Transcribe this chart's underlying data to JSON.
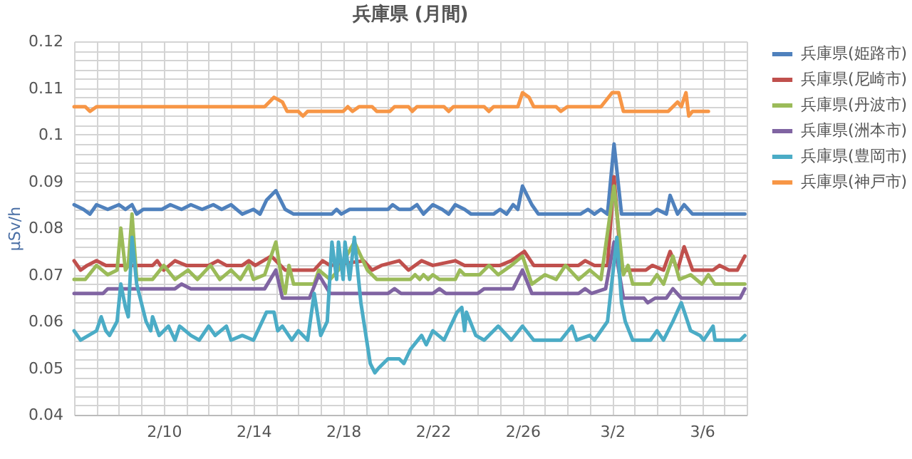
{
  "chart_data": {
    "type": "line",
    "title": "兵庫県 (月間)",
    "ylabel": "μSv/h",
    "legend": "right",
    "grid": true,
    "xlim": [
      "--02-06T00:00",
      "--03-08T00:00"
    ],
    "xticks": [
      {
        "value": "--02-06T00:00",
        "label": null
      },
      {
        "value": "--02-07T00:00",
        "label": null
      },
      {
        "value": "--02-08T00:00",
        "label": null
      },
      {
        "value": "--02-09T00:00",
        "label": null
      },
      {
        "value": "--02-10T00:00",
        "label": "2/10"
      },
      {
        "value": "--02-11T00:00",
        "label": null
      },
      {
        "value": "--02-12T00:00",
        "label": null
      },
      {
        "value": "--02-13T00:00",
        "label": null
      },
      {
        "value": "--02-14T00:00",
        "label": "2/14"
      },
      {
        "value": "--02-15T00:00",
        "label": null
      },
      {
        "value": "--02-16T00:00",
        "label": null
      },
      {
        "value": "--02-17T00:00",
        "label": null
      },
      {
        "value": "--02-18T00:00",
        "label": "2/18"
      },
      {
        "value": "--02-19T00:00",
        "label": null
      },
      {
        "value": "--02-20T00:00",
        "label": null
      },
      {
        "value": "--02-21T00:00",
        "label": null
      },
      {
        "value": "--02-22T00:00",
        "label": "2/22"
      },
      {
        "value": "--02-23T00:00",
        "label": null
      },
      {
        "value": "--02-24T00:00",
        "label": null
      },
      {
        "value": "--02-25T00:00",
        "label": null
      },
      {
        "value": "--02-26T00:00",
        "label": "2/26"
      },
      {
        "value": "--02-27T00:00",
        "label": null
      },
      {
        "value": "--02-28T00:00",
        "label": null
      },
      {
        "value": "--03-01T00:00",
        "label": null
      },
      {
        "value": "--03-02T00:00",
        "label": "3/2"
      },
      {
        "value": "--03-03T00:00",
        "label": null
      },
      {
        "value": "--03-04T00:00",
        "label": null
      },
      {
        "value": "--03-05T00:00",
        "label": null
      },
      {
        "value": "--03-06T00:00",
        "label": "3/6"
      },
      {
        "value": "--03-07T00:00",
        "label": null
      },
      {
        "value": "--03-08T00:00",
        "label": null
      }
    ],
    "ylim": [
      0.04,
      0.12
    ],
    "yticks": [
      0.04,
      {
        "value": 0.042,
        "label": null
      },
      {
        "value": 0.044,
        "label": null
      },
      {
        "value": 0.046,
        "label": null
      },
      {
        "value": 0.048,
        "label": null
      },
      0.05,
      {
        "value": 0.052,
        "label": null
      },
      {
        "value": 0.054,
        "label": null
      },
      {
        "value": 0.056,
        "label": null
      },
      {
        "value": 0.058,
        "label": null
      },
      0.06,
      {
        "value": 0.062,
        "label": null
      },
      {
        "value": 0.064,
        "label": null
      },
      {
        "value": 0.066,
        "label": null
      },
      {
        "value": 0.068,
        "label": null
      },
      0.07,
      {
        "value": 0.072,
        "label": null
      },
      {
        "value": 0.074,
        "label": null
      },
      {
        "value": 0.076,
        "label": null
      },
      {
        "value": 0.078,
        "label": null
      },
      0.08,
      {
        "value": 0.082,
        "label": null
      },
      {
        "value": 0.084,
        "label": null
      },
      {
        "value": 0.086,
        "label": null
      },
      {
        "value": 0.088,
        "label": null
      },
      0.09,
      {
        "value": 0.092,
        "label": null
      },
      {
        "value": 0.094,
        "label": null
      },
      {
        "value": 0.096,
        "label": null
      },
      {
        "value": 0.098,
        "label": null
      },
      0.1,
      {
        "value": 0.102,
        "label": null
      },
      {
        "value": 0.104,
        "label": null
      },
      {
        "value": 0.106,
        "label": null
      },
      {
        "value": 0.108,
        "label": null
      },
      0.11,
      {
        "value": 0.112,
        "label": null
      },
      {
        "value": 0.114,
        "label": null
      },
      {
        "value": 0.116,
        "label": null
      },
      {
        "value": 0.118,
        "label": null
      },
      0.12
    ],
    "series": [
      {
        "name": "兵庫県(姫路市)",
        "color": "#4f81bd",
        "x": [
          "--02-06T00:00",
          "--02-06T10:00",
          "--02-06T17:00",
          "--02-07T00:00",
          "--02-07T12:00",
          "--02-08T00:00",
          "--02-08T07:00",
          "--02-08T14:00",
          "--02-08T19:00",
          "--02-09T02:00",
          "--02-09T22:00",
          "--02-10T07:00",
          "--02-10T19:00",
          "--02-11T05:00",
          "--02-11T17:00",
          "--02-12T05:00",
          "--02-12T14:00",
          "--02-13T00:00",
          "--02-13T12:00",
          "--02-14T00:00",
          "--02-14T07:00",
          "--02-14T14:00",
          "--02-15T00:00",
          "--02-15T10:00",
          "--02-15T19:00",
          "--02-17T12:00",
          "--02-17T17:00",
          "--02-17T22:00",
          "--02-18T07:00",
          "--02-20T00:00",
          "--02-20T05:00",
          "--02-20T12:00",
          "--02-21T00:00",
          "--02-21T07:00",
          "--02-21T14:00",
          "--02-22T00:00",
          "--02-22T10:00",
          "--02-22T17:00",
          "--02-23T00:00",
          "--02-23T10:00",
          "--02-23T17:00",
          "--02-24T17:00",
          "--02-25T00:00",
          "--02-25T07:00",
          "--02-25T14:00",
          "--02-25T19:00",
          "--02-26T00:00",
          "--02-26T10:00",
          "--02-26T17:00",
          "--02-28T14:00",
          "--02-28T22:00",
          "--03-01T05:00",
          "--03-01T12:00",
          "--03-01T19:00",
          "--03-02T02:00",
          "--03-02T10:00",
          "--03-03T17:00",
          "--03-04T00:00",
          "--03-04T10:00",
          "--03-04T14:00",
          "--03-04T22:00",
          "--03-05T05:00",
          "--03-05T14:00",
          "--03-07T22:00"
        ],
        "values": [
          0.085,
          0.084,
          0.083,
          0.085,
          0.084,
          0.085,
          0.084,
          0.085,
          0.083,
          0.084,
          0.084,
          0.085,
          0.084,
          0.085,
          0.084,
          0.085,
          0.084,
          0.085,
          0.083,
          0.084,
          0.083,
          0.086,
          0.088,
          0.084,
          0.083,
          0.083,
          0.084,
          0.083,
          0.084,
          0.084,
          0.085,
          0.084,
          0.084,
          0.085,
          0.083,
          0.085,
          0.084,
          0.083,
          0.085,
          0.084,
          0.083,
          0.083,
          0.084,
          0.083,
          0.085,
          0.084,
          0.089,
          0.085,
          0.083,
          0.083,
          0.084,
          0.083,
          0.084,
          0.083,
          0.098,
          0.083,
          0.083,
          0.084,
          0.083,
          0.087,
          0.083,
          0.085,
          0.083,
          0.083
        ]
      },
      {
        "name": "兵庫県(尼崎市)",
        "color": "#c0504d",
        "x": [
          "--02-06T00:00",
          "--02-06T07:00",
          "--02-06T14:00",
          "--02-07T00:00",
          "--02-07T10:00",
          "--02-09T12:00",
          "--02-09T17:00",
          "--02-10T00:00",
          "--02-10T12:00",
          "--02-11T00:00",
          "--02-12T00:00",
          "--02-12T10:00",
          "--02-12T19:00",
          "--02-13T12:00",
          "--02-13T19:00",
          "--02-14T02:00",
          "--02-14T19:00",
          "--02-15T10:00",
          "--02-16T17:00",
          "--02-17T02:00",
          "--02-17T10:00",
          "--02-18T22:00",
          "--02-19T07:00",
          "--02-19T17:00",
          "--02-20T12:00",
          "--02-20T22:00",
          "--02-21T12:00",
          "--02-22T00:00",
          "--02-23T00:00",
          "--02-23T10:00",
          "--02-25T00:00",
          "--02-25T12:00",
          "--02-26T02:00",
          "--02-26T12:00",
          "--02-28T12:00",
          "--02-28T19:00",
          "--03-01T05:00",
          "--03-01T19:00",
          "--03-02T02:00",
          "--03-02T10:00",
          "--03-03T12:00",
          "--03-03T19:00",
          "--03-04T07:00",
          "--03-04T14:00",
          "--03-04T22:00",
          "--03-05T05:00",
          "--03-05T14:00",
          "--03-06T12:00",
          "--03-06T19:00",
          "--03-07T05:00",
          "--03-07T14:00",
          "--03-07T22:00"
        ],
        "values": [
          0.073,
          0.071,
          0.072,
          0.073,
          0.072,
          0.072,
          0.073,
          0.071,
          0.073,
          0.072,
          0.072,
          0.073,
          0.072,
          0.072,
          0.073,
          0.072,
          0.074,
          0.071,
          0.071,
          0.073,
          0.072,
          0.073,
          0.071,
          0.072,
          0.073,
          0.071,
          0.073,
          0.072,
          0.073,
          0.072,
          0.072,
          0.073,
          0.075,
          0.072,
          0.072,
          0.073,
          0.072,
          0.072,
          0.091,
          0.071,
          0.071,
          0.072,
          0.071,
          0.075,
          0.071,
          0.076,
          0.071,
          0.071,
          0.072,
          0.071,
          0.071,
          0.074
        ]
      },
      {
        "name": "兵庫県(丹波市)",
        "color": "#9bbb59",
        "x": [
          "--02-06T00:00",
          "--02-06T12:00",
          "--02-07T00:00",
          "--02-07T12:00",
          "--02-07T22:00",
          "--02-08T02:00",
          "--02-08T07:00",
          "--02-08T10:00",
          "--02-08T14:00",
          "--02-08T19:00",
          "--02-09T12:00",
          "--02-10T00:00",
          "--02-10T12:00",
          "--02-11T02:00",
          "--02-11T12:00",
          "--02-12T02:00",
          "--02-12T12:00",
          "--02-13T00:00",
          "--02-13T10:00",
          "--02-13T19:00",
          "--02-14T00:00",
          "--02-14T12:00",
          "--02-15T00:00",
          "--02-15T07:00",
          "--02-15T10:00",
          "--02-15T14:00",
          "--02-15T19:00",
          "--02-16T17:00",
          "--02-16T22:00",
          "--02-17T10:00",
          "--02-17T19:00",
          "--02-18T12:00",
          "--02-19T02:00",
          "--02-19T12:00",
          "--02-21T00:00",
          "--02-21T05:00",
          "--02-21T10:00",
          "--02-21T14:00",
          "--02-21T19:00",
          "--02-22T00:00",
          "--02-22T07:00",
          "--02-23T00:00",
          "--02-23T05:00",
          "--02-23T10:00",
          "--02-24T02:00",
          "--02-24T12:00",
          "--02-24T22:00",
          "--02-25T12:00",
          "--02-26T00:00",
          "--02-26T10:00",
          "--02-27T00:00",
          "--02-27T12:00",
          "--02-27T22:00",
          "--02-28T12:00",
          "--03-01T00:00",
          "--03-01T12:00",
          "--03-02T02:00",
          "--03-02T12:00",
          "--03-02T17:00",
          "--03-02T22:00",
          "--03-03T17:00",
          "--03-04T00:00",
          "--03-04T07:00",
          "--03-04T17:00",
          "--03-05T00:00",
          "--03-05T12:00",
          "--03-06T00:00",
          "--03-06T07:00",
          "--03-06T14:00",
          "--03-07T22:00"
        ],
        "values": [
          0.069,
          0.069,
          0.072,
          0.07,
          0.071,
          0.08,
          0.071,
          0.072,
          0.083,
          0.069,
          0.069,
          0.072,
          0.069,
          0.071,
          0.069,
          0.072,
          0.069,
          0.071,
          0.069,
          0.072,
          0.069,
          0.07,
          0.077,
          0.068,
          0.066,
          0.072,
          0.068,
          0.068,
          0.071,
          0.069,
          0.071,
          0.077,
          0.071,
          0.069,
          0.069,
          0.07,
          0.069,
          0.07,
          0.069,
          0.07,
          0.069,
          0.069,
          0.071,
          0.07,
          0.07,
          0.072,
          0.07,
          0.072,
          0.074,
          0.068,
          0.07,
          0.069,
          0.072,
          0.069,
          0.071,
          0.069,
          0.089,
          0.07,
          0.072,
          0.068,
          0.068,
          0.07,
          0.068,
          0.074,
          0.069,
          0.07,
          0.068,
          0.07,
          0.068,
          0.068
        ]
      },
      {
        "name": "兵庫県(洲本市)",
        "color": "#8064a2",
        "x": [
          "--02-06T00:00",
          "--02-07T07:00",
          "--02-07T12:00",
          "--02-10T12:00",
          "--02-10T19:00",
          "--02-11T05:00",
          "--02-14T12:00",
          "--02-15T00:00",
          "--02-15T07:00",
          "--02-16T12:00",
          "--02-16T22:00",
          "--02-17T10:00",
          "--02-20T00:00",
          "--02-20T07:00",
          "--02-20T14:00",
          "--02-22T00:00",
          "--02-22T07:00",
          "--02-22T14:00",
          "--02-24T00:00",
          "--02-24T07:00",
          "--02-25T14:00",
          "--02-26T00:00",
          "--02-26T10:00",
          "--02-28T12:00",
          "--02-28T19:00",
          "--03-01T02:00",
          "--03-01T17:00",
          "--03-02T02:00",
          "--03-02T12:00",
          "--03-03T10:00",
          "--03-03T14:00",
          "--03-03T22:00",
          "--03-04T10:00",
          "--03-04T17:00",
          "--03-05T02:00",
          "--03-07T17:00",
          "--03-07T22:00"
        ],
        "values": [
          0.066,
          0.066,
          0.067,
          0.067,
          0.068,
          0.067,
          0.067,
          0.071,
          0.065,
          0.065,
          0.07,
          0.066,
          0.066,
          0.067,
          0.066,
          0.066,
          0.067,
          0.066,
          0.066,
          0.067,
          0.067,
          0.071,
          0.066,
          0.066,
          0.067,
          0.066,
          0.067,
          0.077,
          0.065,
          0.065,
          0.064,
          0.065,
          0.065,
          0.067,
          0.065,
          0.065,
          0.067
        ]
      },
      {
        "name": "兵庫県(豊岡市)",
        "color": "#4bacc6",
        "x": [
          "--02-06T00:00",
          "--02-06T07:00",
          "--02-07T00:00",
          "--02-07T05:00",
          "--02-07T10:00",
          "--02-07T14:00",
          "--02-07T22:00",
          "--02-08T02:00",
          "--02-08T07:00",
          "--02-08T10:00",
          "--02-08T14:00",
          "--02-08T19:00",
          "--02-09T05:00",
          "--02-09T10:00",
          "--02-09T12:00",
          "--02-09T19:00",
          "--02-10T05:00",
          "--02-10T12:00",
          "--02-10T17:00",
          "--02-11T05:00",
          "--02-11T14:00",
          "--02-12T00:00",
          "--02-12T07:00",
          "--02-12T19:00",
          "--02-13T00:00",
          "--02-13T12:00",
          "--02-14T00:00",
          "--02-14T14:00",
          "--02-14T22:00",
          "--02-15T02:00",
          "--02-15T07:00",
          "--02-15T17:00",
          "--02-16T00:00",
          "--02-16T10:00",
          "--02-16T17:00",
          "--02-17T00:00",
          "--02-17T07:00",
          "--02-17T12:00",
          "--02-17T17:00",
          "--02-17T19:00",
          "--02-18T00:00",
          "--02-18T02:00",
          "--02-18T07:00",
          "--02-18T12:00",
          "--02-18T19:00",
          "--02-19T05:00",
          "--02-19T10:00",
          "--02-19T14:00",
          "--02-20T00:00",
          "--02-20T12:00",
          "--02-20T17:00",
          "--02-21T00:00",
          "--02-21T12:00",
          "--02-21T17:00",
          "--02-22T00:00",
          "--02-22T12:00",
          "--02-23T02:00",
          "--02-23T07:00",
          "--02-23T10:00",
          "--02-23T12:00",
          "--02-23T22:00",
          "--02-24T07:00",
          "--02-24T22:00",
          "--02-25T12:00",
          "--02-26T00:00",
          "--02-26T12:00",
          "--02-27T17:00",
          "--02-28T05:00",
          "--02-28T10:00",
          "--03-01T00:00",
          "--03-01T05:00",
          "--03-01T19:00",
          "--03-02T05:00",
          "--03-02T10:00",
          "--03-02T14:00",
          "--03-02T22:00",
          "--03-03T17:00",
          "--03-04T00:00",
          "--03-04T07:00",
          "--03-04T17:00",
          "--03-05T02:00",
          "--03-05T12:00",
          "--03-05T22:00",
          "--03-06T02:00",
          "--03-06T12:00",
          "--03-06T14:00",
          "--03-07T17:00",
          "--03-07T22:00"
        ],
        "values": [
          0.058,
          0.056,
          0.058,
          0.061,
          0.058,
          0.057,
          0.06,
          0.068,
          0.063,
          0.061,
          0.078,
          0.068,
          0.06,
          0.058,
          0.061,
          0.057,
          0.059,
          0.056,
          0.059,
          0.057,
          0.056,
          0.059,
          0.057,
          0.059,
          0.056,
          0.057,
          0.056,
          0.062,
          0.062,
          0.058,
          0.059,
          0.056,
          0.058,
          0.056,
          0.066,
          0.057,
          0.06,
          0.077,
          0.069,
          0.077,
          0.069,
          0.077,
          0.069,
          0.078,
          0.064,
          0.051,
          0.049,
          0.05,
          0.052,
          0.052,
          0.051,
          0.054,
          0.057,
          0.055,
          0.058,
          0.056,
          0.062,
          0.063,
          0.058,
          0.062,
          0.057,
          0.056,
          0.059,
          0.056,
          0.059,
          0.056,
          0.056,
          0.059,
          0.056,
          0.057,
          0.056,
          0.06,
          0.078,
          0.064,
          0.06,
          0.056,
          0.056,
          0.058,
          0.056,
          0.06,
          0.064,
          0.058,
          0.057,
          0.056,
          0.059,
          0.056,
          0.056,
          0.057
        ]
      },
      {
        "name": "兵庫県(神戸市)",
        "color": "#f79646",
        "x": [
          "--02-06T00:00",
          "--02-06T12:00",
          "--02-06T17:00",
          "--02-07T00:00",
          "--02-14T12:00",
          "--02-14T22:00",
          "--02-15T07:00",
          "--02-15T12:00",
          "--02-16T00:00",
          "--02-16T05:00",
          "--02-16T10:00",
          "--02-18T00:00",
          "--02-18T05:00",
          "--02-18T10:00",
          "--02-18T17:00",
          "--02-19T07:00",
          "--02-19T12:00",
          "--02-20T02:00",
          "--02-20T07:00",
          "--02-20T22:00",
          "--02-21T02:00",
          "--02-21T07:00",
          "--02-22T12:00",
          "--02-22T17:00",
          "--02-22T22:00",
          "--02-24T07:00",
          "--02-24T12:00",
          "--02-24T17:00",
          "--02-25T19:00",
          "--02-26T00:00",
          "--02-26T07:00",
          "--02-26T12:00",
          "--02-27T12:00",
          "--02-27T17:00",
          "--02-28T00:00",
          "--03-01T12:00",
          "--03-02T00:00",
          "--03-02T07:00",
          "--03-02T12:00",
          "--03-04T12:00",
          "--03-04T22:00",
          "--03-05T02:00",
          "--03-05T07:00",
          "--03-05T10:00",
          "--03-05T14:00",
          "--03-06T07:00"
        ],
        "values": [
          0.106,
          0.106,
          0.105,
          0.106,
          0.106,
          0.108,
          0.107,
          0.105,
          0.105,
          0.104,
          0.105,
          0.105,
          0.106,
          0.105,
          0.106,
          0.106,
          0.105,
          0.105,
          0.106,
          0.106,
          0.105,
          0.106,
          0.106,
          0.105,
          0.106,
          0.106,
          0.105,
          0.106,
          0.106,
          0.109,
          0.108,
          0.106,
          0.106,
          0.105,
          0.106,
          0.106,
          0.109,
          0.109,
          0.105,
          0.105,
          0.107,
          0.106,
          0.109,
          0.104,
          0.105,
          0.105
        ]
      }
    ]
  }
}
